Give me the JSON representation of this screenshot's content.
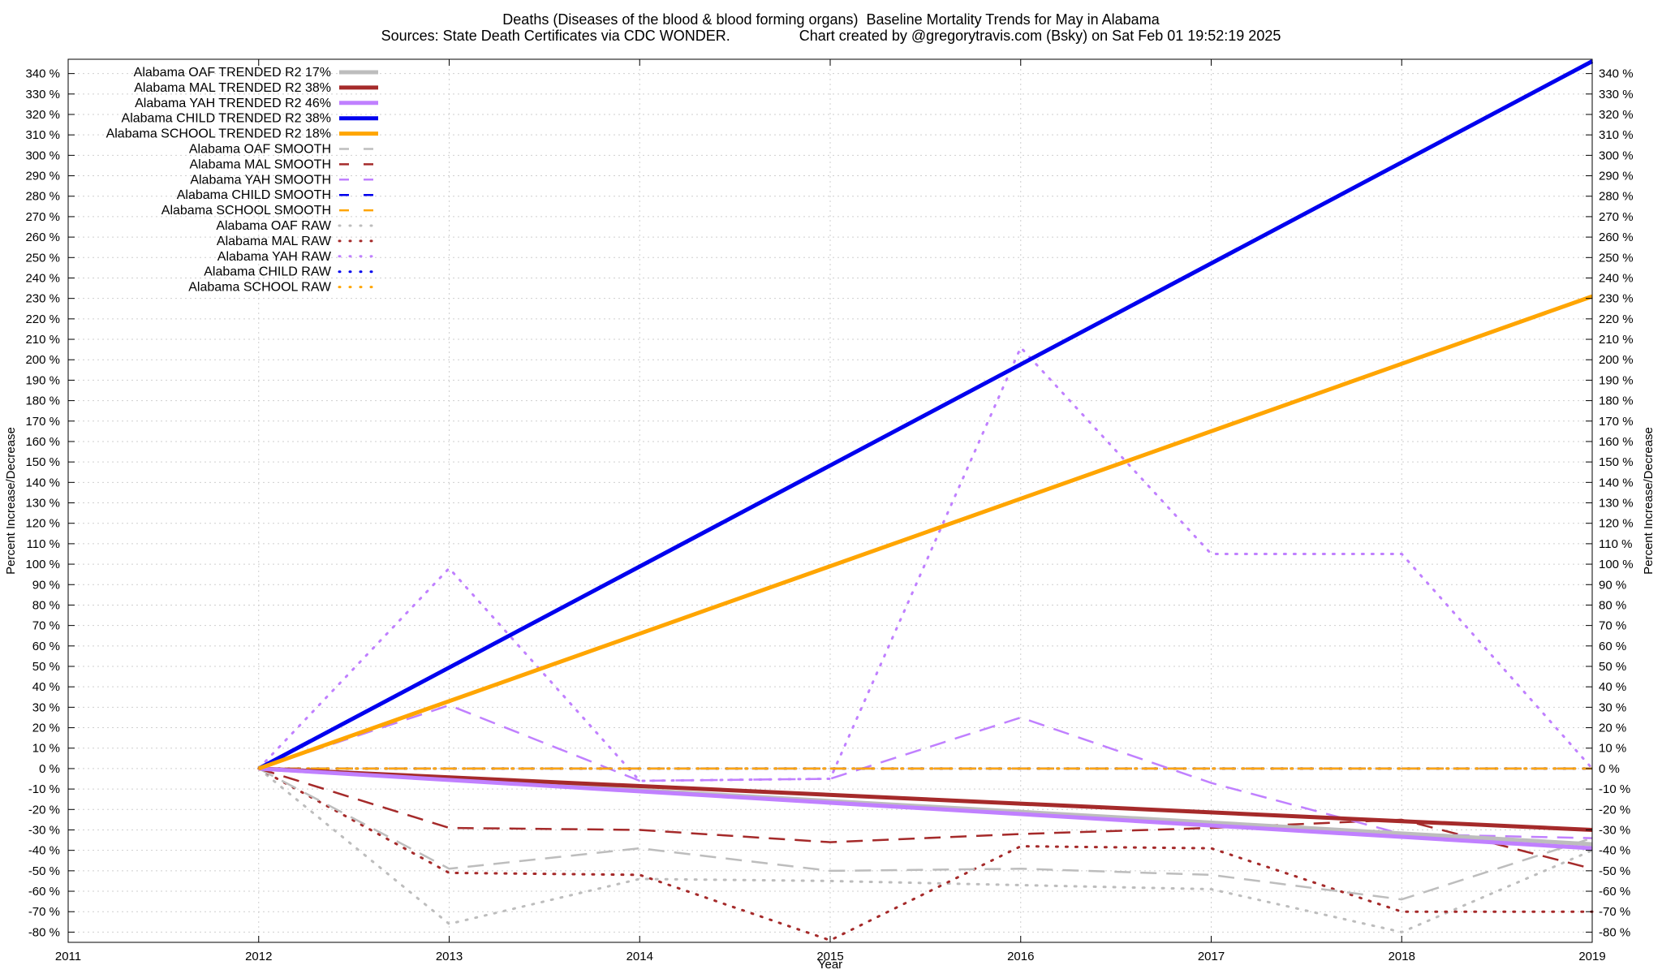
{
  "title_line1": "Deaths (Diseases of the blood & blood forming organs)  Baseline Mortality Trends for May in Alabama",
  "title_line2": "Sources: State Death Certificates via CDC WONDER.                 Chart created by @gregorytravis.com (Bsky) on Sat Feb 01 19:52:19 2025",
  "chart_data": {
    "type": "line",
    "title": "Deaths (Diseases of the blood & blood forming organs)  Baseline Mortality Trends for May in Alabama",
    "xlabel": "Year",
    "ylabel": "Percent Increase/Decrease",
    "y2label": "Percent Increase/Decrease",
    "xlim": [
      2011,
      2019
    ],
    "ylim": [
      -85,
      347
    ],
    "x_ticks": [
      "2011",
      "2012",
      "2013",
      "2014",
      "2015",
      "2016",
      "2017",
      "2018",
      "2019"
    ],
    "y_ticks": [
      -80,
      -70,
      -60,
      -50,
      -40,
      -30,
      -20,
      -10,
      0,
      10,
      20,
      30,
      40,
      50,
      60,
      70,
      80,
      90,
      100,
      110,
      120,
      130,
      140,
      150,
      160,
      170,
      180,
      190,
      200,
      210,
      220,
      230,
      240,
      250,
      260,
      270,
      280,
      290,
      300,
      310,
      320,
      330,
      340
    ],
    "y_tick_suffix": " %",
    "grid": true,
    "legend_position": "top-left",
    "series": [
      {
        "name": "Alabama OAF TRENDED R2  17%",
        "style": "trend",
        "color": "#bdbdbd",
        "x": [
          2012,
          2019
        ],
        "y": [
          0,
          -37
        ]
      },
      {
        "name": "Alabama MAL TRENDED R2  38%",
        "style": "trend",
        "color": "#a52a2a",
        "x": [
          2012,
          2019
        ],
        "y": [
          0,
          -30
        ]
      },
      {
        "name": "Alabama YAH TRENDED R2  46%",
        "style": "trend",
        "color": "#c080ff",
        "x": [
          2012,
          2019
        ],
        "y": [
          0,
          -39
        ]
      },
      {
        "name": "Alabama CHILD TRENDED R2  38%",
        "style": "trend",
        "color": "#0000ee",
        "x": [
          2012,
          2019
        ],
        "y": [
          0,
          346
        ]
      },
      {
        "name": "Alabama SCHOOL TRENDED R2  18%",
        "style": "trend",
        "color": "#ffa500",
        "x": [
          2012,
          2019
        ],
        "y": [
          0,
          231
        ]
      },
      {
        "name": "Alabama OAF SMOOTH",
        "style": "smooth",
        "color": "#bdbdbd",
        "x": [
          2012,
          2013,
          2014,
          2015,
          2016,
          2017,
          2018,
          2019
        ],
        "y": [
          0,
          -49,
          -39,
          -50,
          -49,
          -52,
          -64,
          -34
        ]
      },
      {
        "name": "Alabama MAL SMOOTH",
        "style": "smooth",
        "color": "#a52a2a",
        "x": [
          2012,
          2013,
          2014,
          2015,
          2016,
          2017,
          2018,
          2019
        ],
        "y": [
          0,
          -29,
          -30,
          -36,
          -32,
          -29,
          -25,
          -49
        ]
      },
      {
        "name": "Alabama YAH SMOOTH",
        "style": "smooth",
        "color": "#c080ff",
        "x": [
          2012,
          2013,
          2014,
          2015,
          2016,
          2017,
          2018,
          2019
        ],
        "y": [
          0,
          31,
          -6,
          -5,
          25,
          -7,
          -32,
          -34
        ]
      },
      {
        "name": "Alabama CHILD SMOOTH",
        "style": "smooth",
        "color": "#0000ee",
        "x": [
          2012,
          2019
        ],
        "y": [
          0,
          0
        ]
      },
      {
        "name": "Alabama SCHOOL SMOOTH",
        "style": "smooth",
        "color": "#ffa500",
        "x": [
          2012,
          2019
        ],
        "y": [
          0,
          0
        ]
      },
      {
        "name": "Alabama OAF RAW",
        "style": "raw",
        "color": "#bdbdbd",
        "x": [
          2012,
          2013,
          2014,
          2015,
          2016,
          2017,
          2018,
          2019
        ],
        "y": [
          0,
          -76,
          -54,
          -55,
          -57,
          -59,
          -80,
          -40
        ]
      },
      {
        "name": "Alabama MAL RAW",
        "style": "raw",
        "color": "#a52a2a",
        "x": [
          2012,
          2013,
          2014,
          2015,
          2016,
          2017,
          2018,
          2019
        ],
        "y": [
          0,
          -51,
          -52,
          -84,
          -38,
          -39,
          -70,
          -70
        ]
      },
      {
        "name": "Alabama YAH RAW",
        "style": "raw",
        "color": "#c080ff",
        "x": [
          2012,
          2013,
          2014,
          2015,
          2016,
          2017,
          2018,
          2019
        ],
        "y": [
          0,
          98,
          -6,
          -5,
          206,
          105,
          105,
          0
        ]
      },
      {
        "name": "Alabama CHILD RAW",
        "style": "raw",
        "color": "#0000ee",
        "x": [
          2012,
          2019
        ],
        "y": [
          0,
          0
        ]
      },
      {
        "name": "Alabama SCHOOL RAW",
        "style": "raw",
        "color": "#ffa500",
        "x": [
          2012,
          2019
        ],
        "y": [
          0,
          0
        ]
      }
    ]
  }
}
